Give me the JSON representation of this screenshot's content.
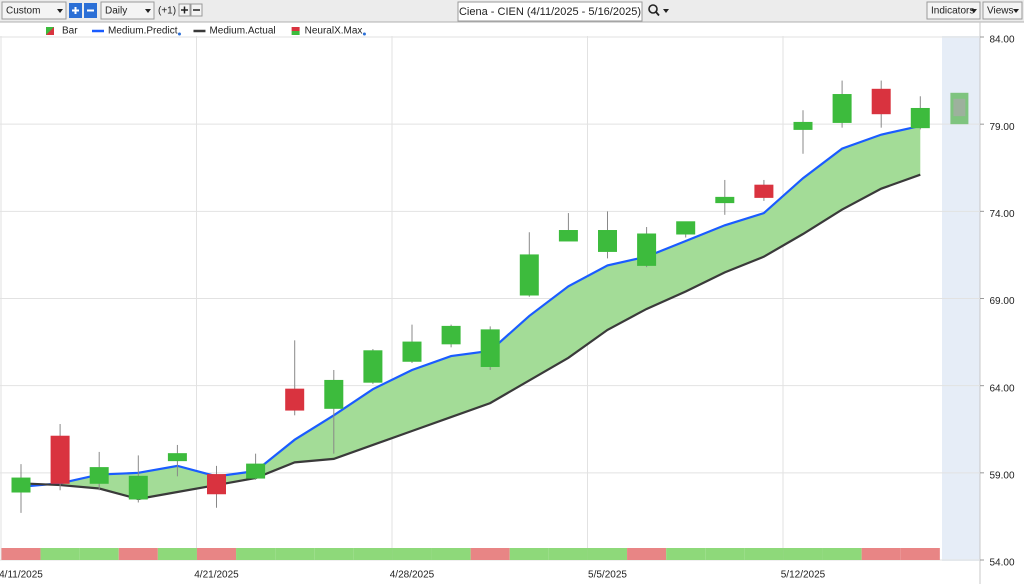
{
  "toolbar": {
    "period": "Custom",
    "interval": "Daily",
    "offset": "(+1)",
    "title": "Ciena - CIEN (4/11/2025 - 5/16/2025)",
    "indicators": "Indicators",
    "views": "Views"
  },
  "chart_data": {
    "type": "candlestick",
    "categories": [
      "4/11/2025",
      null,
      null,
      null,
      null,
      "4/21/2025",
      null,
      null,
      null,
      null,
      "4/28/2025",
      null,
      null,
      null,
      null,
      "5/5/2025",
      null,
      null,
      null,
      null,
      "5/12/2025",
      null,
      null,
      null
    ],
    "bar_name": "Bar",
    "open": [
      57.9,
      61.1,
      58.4,
      57.5,
      59.7,
      58.9,
      58.7,
      63.8,
      62.7,
      64.2,
      65.4,
      66.4,
      65.1,
      69.2,
      72.3,
      71.7,
      70.9,
      72.7,
      74.5,
      75.5,
      78.7,
      79.1,
      81.0,
      78.8
    ],
    "high": [
      59.5,
      61.8,
      60.2,
      60.0,
      60.6,
      59.4,
      60.1,
      66.6,
      64.9,
      66.1,
      67.5,
      67.5,
      67.4,
      72.8,
      73.9,
      74.0,
      73.1,
      73.4,
      75.8,
      75.8,
      79.8,
      81.5,
      81.5,
      80.6
    ],
    "low": [
      56.7,
      58.0,
      58.0,
      57.3,
      58.8,
      57.0,
      58.6,
      62.3,
      60.1,
      64.1,
      65.3,
      66.2,
      64.9,
      69.1,
      72.3,
      71.3,
      70.8,
      72.5,
      73.8,
      74.6,
      77.3,
      78.8,
      78.8,
      78.7
    ],
    "close": [
      58.7,
      58.4,
      59.3,
      58.8,
      60.1,
      57.8,
      59.5,
      62.6,
      64.3,
      66.0,
      66.5,
      67.4,
      67.2,
      71.5,
      72.9,
      72.9,
      72.7,
      73.4,
      74.8,
      74.8,
      79.1,
      80.7,
      79.6,
      79.9
    ],
    "up_color": "#3dbb3d",
    "down_color": "#d9333f",
    "lines": [
      {
        "name": "Medium.Predict",
        "color": "#1a5cff",
        "values": [
          58.2,
          58.4,
          58.9,
          59.0,
          59.4,
          58.8,
          59.1,
          60.9,
          62.3,
          63.8,
          64.9,
          65.7,
          66.0,
          68.0,
          69.7,
          70.9,
          71.4,
          72.3,
          73.2,
          73.9,
          75.9,
          77.6,
          78.4,
          78.9
        ]
      },
      {
        "name": "Medium.Actual",
        "color": "#3a3a3a",
        "values": [
          58.4,
          58.3,
          58.1,
          57.5,
          57.9,
          58.3,
          58.7,
          59.6,
          59.8,
          60.6,
          61.4,
          62.2,
          63.0,
          64.3,
          65.6,
          67.2,
          68.4,
          69.4,
          70.5,
          71.4,
          72.7,
          74.1,
          75.3,
          76.1
        ]
      }
    ],
    "band_color": "#a3dc97",
    "forecast": {
      "name": "NeuralX.Max",
      "high": 80.8,
      "low": 79.0,
      "color": "#7fc47f"
    },
    "signal_colors": [
      "#e88585",
      "#8ed97a",
      "#8ed97a",
      "#e88585",
      "#8ed97a",
      "#e88585",
      "#8ed97a",
      "#8ed97a",
      "#8ed97a",
      "#8ed97a",
      "#8ed97a",
      "#8ed97a",
      "#e88585",
      "#8ed97a",
      "#8ed97a",
      "#8ed97a",
      "#e88585",
      "#8ed97a",
      "#8ed97a",
      "#8ed97a",
      "#8ed97a",
      "#8ed97a",
      "#e88585",
      "#e88585"
    ],
    "ylim": [
      54,
      84
    ],
    "yticks": [
      {
        "value": 54,
        "label": "54.00"
      },
      {
        "value": 59,
        "label": "59.00"
      },
      {
        "value": 64,
        "label": "64.00"
      },
      {
        "value": 69,
        "label": "69.00"
      },
      {
        "value": 74,
        "label": "74.00"
      },
      {
        "value": 79,
        "label": "79.00"
      },
      {
        "value": 84,
        "label": "84.00"
      }
    ],
    "grid": true
  }
}
